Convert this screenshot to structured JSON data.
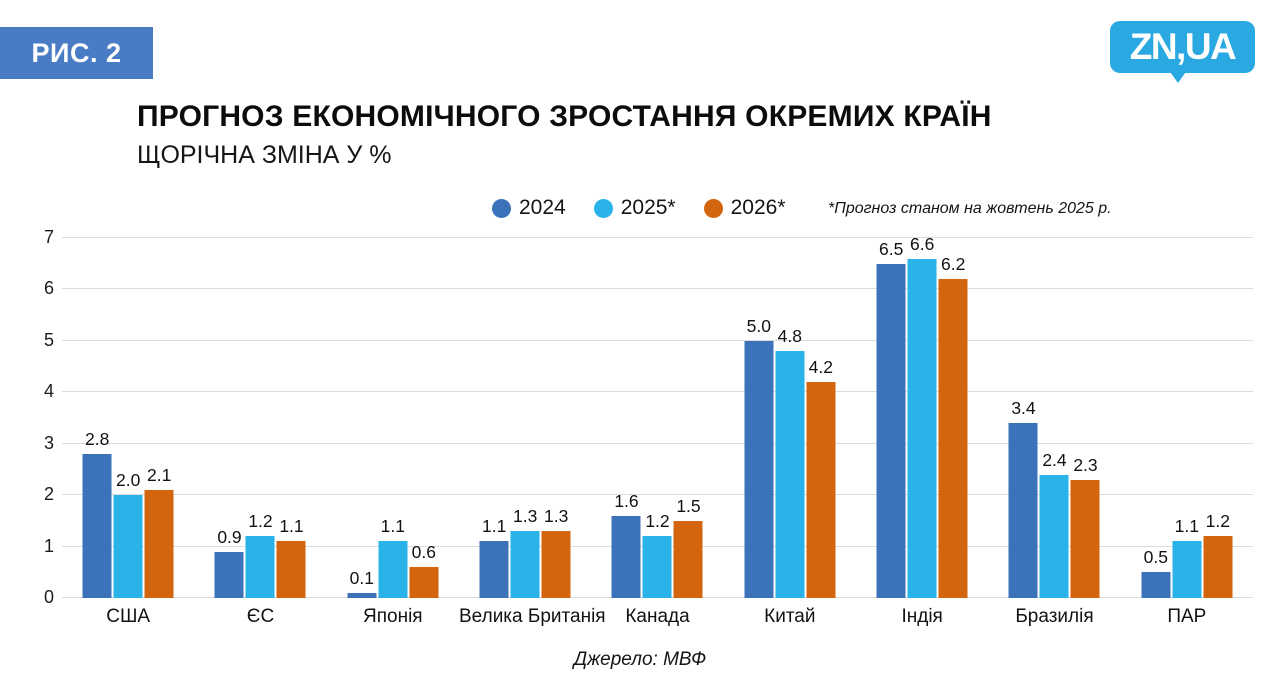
{
  "badge": {
    "label": "РИС. 2",
    "bg_color": "#4a7cc6"
  },
  "logo": {
    "text": "ZN,UA",
    "bg_color": "#29a8e1"
  },
  "header": {
    "title": "ПРОГНОЗ ЕКОНОМІЧНОГО ЗРОСТАННЯ ОКРЕМИХ КРАЇН",
    "subtitle": "ЩОРІЧНА ЗМІНА У %"
  },
  "legend": {
    "items": [
      {
        "label": "2024",
        "color": "#3b72ba"
      },
      {
        "label": "2025*",
        "color": "#29b3e9"
      },
      {
        "label": "2026*",
        "color": "#d2650e"
      }
    ],
    "note": "*Прогноз станом на жовтень 2025 р."
  },
  "source": "Джерело: МВФ",
  "colors": {
    "grid": "#dcdcdc",
    "series_2024": "#3b72ba",
    "series_2025": "#29b3e9",
    "series_2026": "#d2650e"
  },
  "chart_data": {
    "type": "bar",
    "title": "ПРОГНОЗ ЕКОНОМІЧНОГО ЗРОСТАННЯ ОКРЕМИХ КРАЇН",
    "subtitle": "ЩОРІЧНА ЗМІНА У %",
    "xlabel": "",
    "ylabel": "",
    "ylim": [
      0,
      7
    ],
    "yticks": [
      0,
      1,
      2,
      3,
      4,
      5,
      6,
      7
    ],
    "grid": true,
    "legend_position": "top",
    "value_labels": true,
    "categories": [
      "США",
      "ЄС",
      "Японія",
      "Велика Британія",
      "Канада",
      "Китай",
      "Індія",
      "Бразилія",
      "ПАР"
    ],
    "series": [
      {
        "name": "2024",
        "color": "#3b72ba",
        "values": [
          2.8,
          0.9,
          0.1,
          1.1,
          1.6,
          5.0,
          6.5,
          3.4,
          0.5
        ]
      },
      {
        "name": "2025*",
        "color": "#29b3e9",
        "values": [
          2.0,
          1.2,
          1.1,
          1.3,
          1.2,
          4.8,
          6.6,
          2.4,
          1.1
        ]
      },
      {
        "name": "2026*",
        "color": "#d2650e",
        "values": [
          2.1,
          1.1,
          0.6,
          1.3,
          1.5,
          4.2,
          6.2,
          2.3,
          1.2
        ]
      }
    ]
  }
}
